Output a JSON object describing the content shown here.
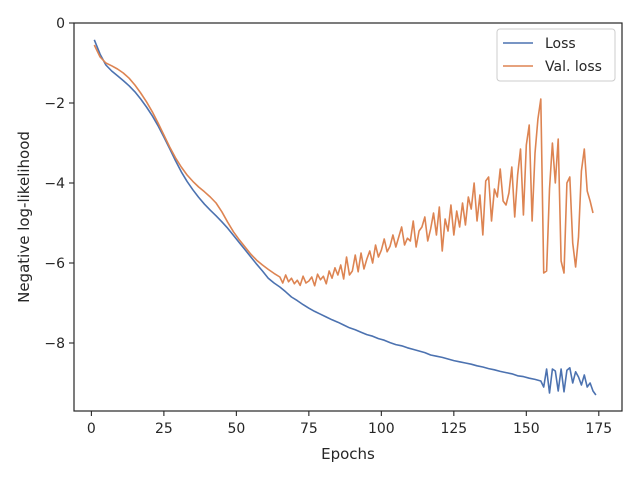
{
  "chart_data": {
    "type": "line",
    "title": "",
    "xlabel": "Epochs",
    "ylabel": "Negative log-likelihood",
    "xlim": [
      -6,
      183
    ],
    "ylim": [
      -9.7,
      0
    ],
    "xticks": [
      0,
      25,
      50,
      75,
      100,
      125,
      150,
      175
    ],
    "xtick_labels": [
      "0",
      "25",
      "50",
      "75",
      "100",
      "125",
      "150",
      "175"
    ],
    "yticks": [
      0,
      -2,
      -4,
      -6,
      -8
    ],
    "ytick_labels": [
      "0",
      "−2",
      "−4",
      "−6",
      "−8"
    ],
    "grid": false,
    "legend_position": "top-right",
    "series": [
      {
        "name": "Loss",
        "color": "#4c72b0",
        "points": [
          [
            1,
            -0.42
          ],
          [
            3,
            -0.78
          ],
          [
            5,
            -1.05
          ],
          [
            7,
            -1.2
          ],
          [
            9,
            -1.32
          ],
          [
            11,
            -1.44
          ],
          [
            13,
            -1.57
          ],
          [
            15,
            -1.72
          ],
          [
            17,
            -1.9
          ],
          [
            19,
            -2.1
          ],
          [
            21,
            -2.32
          ],
          [
            23,
            -2.57
          ],
          [
            25,
            -2.85
          ],
          [
            27,
            -3.14
          ],
          [
            29,
            -3.44
          ],
          [
            31,
            -3.72
          ],
          [
            33,
            -3.96
          ],
          [
            35,
            -4.17
          ],
          [
            37,
            -4.36
          ],
          [
            39,
            -4.53
          ],
          [
            41,
            -4.68
          ],
          [
            43,
            -4.82
          ],
          [
            45,
            -4.97
          ],
          [
            47,
            -5.13
          ],
          [
            49,
            -5.31
          ],
          [
            51,
            -5.49
          ],
          [
            53,
            -5.67
          ],
          [
            55,
            -5.85
          ],
          [
            57,
            -6.03
          ],
          [
            59,
            -6.2
          ],
          [
            61,
            -6.38
          ],
          [
            63,
            -6.5
          ],
          [
            65,
            -6.6
          ],
          [
            67,
            -6.72
          ],
          [
            69,
            -6.85
          ],
          [
            71,
            -6.94
          ],
          [
            73,
            -7.04
          ],
          [
            75,
            -7.13
          ],
          [
            77,
            -7.21
          ],
          [
            79,
            -7.28
          ],
          [
            81,
            -7.35
          ],
          [
            83,
            -7.42
          ],
          [
            85,
            -7.48
          ],
          [
            87,
            -7.55
          ],
          [
            89,
            -7.62
          ],
          [
            91,
            -7.67
          ],
          [
            93,
            -7.73
          ],
          [
            95,
            -7.79
          ],
          [
            97,
            -7.83
          ],
          [
            99,
            -7.89
          ],
          [
            101,
            -7.93
          ],
          [
            103,
            -7.99
          ],
          [
            105,
            -8.04
          ],
          [
            107,
            -8.07
          ],
          [
            109,
            -8.12
          ],
          [
            111,
            -8.16
          ],
          [
            113,
            -8.2
          ],
          [
            115,
            -8.24
          ],
          [
            117,
            -8.3
          ],
          [
            119,
            -8.33
          ],
          [
            121,
            -8.36
          ],
          [
            123,
            -8.4
          ],
          [
            125,
            -8.44
          ],
          [
            127,
            -8.47
          ],
          [
            129,
            -8.5
          ],
          [
            131,
            -8.53
          ],
          [
            133,
            -8.57
          ],
          [
            135,
            -8.6
          ],
          [
            137,
            -8.64
          ],
          [
            139,
            -8.67
          ],
          [
            141,
            -8.71
          ],
          [
            143,
            -8.74
          ],
          [
            145,
            -8.77
          ],
          [
            147,
            -8.82
          ],
          [
            149,
            -8.84
          ],
          [
            151,
            -8.88
          ],
          [
            153,
            -8.91
          ],
          [
            155,
            -8.95
          ],
          [
            156,
            -9.1
          ],
          [
            157,
            -8.65
          ],
          [
            158,
            -9.25
          ],
          [
            159,
            -8.65
          ],
          [
            160,
            -8.7
          ],
          [
            161,
            -9.2
          ],
          [
            162,
            -8.65
          ],
          [
            163,
            -9.22
          ],
          [
            164,
            -8.68
          ],
          [
            165,
            -8.62
          ],
          [
            166,
            -9.0
          ],
          [
            167,
            -8.72
          ],
          [
            168,
            -8.85
          ],
          [
            169,
            -9.05
          ],
          [
            170,
            -8.8
          ],
          [
            171,
            -9.1
          ],
          [
            172,
            -9.0
          ],
          [
            173,
            -9.2
          ],
          [
            174,
            -9.3
          ]
        ]
      },
      {
        "name": "Val. loss",
        "color": "#dd8452",
        "points": [
          [
            1,
            -0.55
          ],
          [
            3,
            -0.85
          ],
          [
            5,
            -1.0
          ],
          [
            7,
            -1.07
          ],
          [
            9,
            -1.15
          ],
          [
            11,
            -1.25
          ],
          [
            13,
            -1.38
          ],
          [
            15,
            -1.55
          ],
          [
            17,
            -1.75
          ],
          [
            19,
            -1.97
          ],
          [
            21,
            -2.22
          ],
          [
            23,
            -2.5
          ],
          [
            25,
            -2.8
          ],
          [
            27,
            -3.1
          ],
          [
            29,
            -3.37
          ],
          [
            31,
            -3.6
          ],
          [
            33,
            -3.8
          ],
          [
            35,
            -3.96
          ],
          [
            37,
            -4.1
          ],
          [
            39,
            -4.22
          ],
          [
            41,
            -4.35
          ],
          [
            43,
            -4.5
          ],
          [
            45,
            -4.72
          ],
          [
            47,
            -4.98
          ],
          [
            49,
            -5.22
          ],
          [
            51,
            -5.42
          ],
          [
            53,
            -5.6
          ],
          [
            55,
            -5.78
          ],
          [
            57,
            -5.93
          ],
          [
            59,
            -6.05
          ],
          [
            61,
            -6.16
          ],
          [
            63,
            -6.26
          ],
          [
            65,
            -6.35
          ],
          [
            66,
            -6.5
          ],
          [
            67,
            -6.3
          ],
          [
            68,
            -6.47
          ],
          [
            69,
            -6.38
          ],
          [
            70,
            -6.52
          ],
          [
            71,
            -6.43
          ],
          [
            72,
            -6.56
          ],
          [
            73,
            -6.33
          ],
          [
            74,
            -6.5
          ],
          [
            75,
            -6.45
          ],
          [
            76,
            -6.35
          ],
          [
            77,
            -6.57
          ],
          [
            78,
            -6.28
          ],
          [
            79,
            -6.42
          ],
          [
            80,
            -6.33
          ],
          [
            81,
            -6.52
          ],
          [
            82,
            -6.2
          ],
          [
            83,
            -6.38
          ],
          [
            84,
            -6.12
          ],
          [
            85,
            -6.3
          ],
          [
            86,
            -6.05
          ],
          [
            87,
            -6.4
          ],
          [
            88,
            -5.85
          ],
          [
            89,
            -6.3
          ],
          [
            90,
            -6.2
          ],
          [
            91,
            -5.8
          ],
          [
            92,
            -6.22
          ],
          [
            93,
            -5.75
          ],
          [
            94,
            -6.15
          ],
          [
            95,
            -5.9
          ],
          [
            96,
            -5.7
          ],
          [
            97,
            -6.0
          ],
          [
            98,
            -5.55
          ],
          [
            99,
            -5.85
          ],
          [
            100,
            -5.68
          ],
          [
            101,
            -5.4
          ],
          [
            102,
            -5.72
          ],
          [
            103,
            -5.58
          ],
          [
            104,
            -5.3
          ],
          [
            105,
            -5.6
          ],
          [
            106,
            -5.35
          ],
          [
            107,
            -5.1
          ],
          [
            108,
            -5.55
          ],
          [
            109,
            -5.38
          ],
          [
            110,
            -5.45
          ],
          [
            111,
            -4.95
          ],
          [
            112,
            -5.6
          ],
          [
            113,
            -5.2
          ],
          [
            114,
            -5.1
          ],
          [
            115,
            -4.85
          ],
          [
            116,
            -5.45
          ],
          [
            117,
            -5.15
          ],
          [
            118,
            -4.75
          ],
          [
            119,
            -5.3
          ],
          [
            120,
            -4.6
          ],
          [
            121,
            -5.7
          ],
          [
            122,
            -4.9
          ],
          [
            123,
            -5.2
          ],
          [
            124,
            -4.55
          ],
          [
            125,
            -5.3
          ],
          [
            126,
            -4.7
          ],
          [
            127,
            -5.1
          ],
          [
            128,
            -4.5
          ],
          [
            129,
            -5.05
          ],
          [
            130,
            -4.35
          ],
          [
            131,
            -4.65
          ],
          [
            132,
            -4.0
          ],
          [
            133,
            -4.95
          ],
          [
            134,
            -4.3
          ],
          [
            135,
            -5.3
          ],
          [
            136,
            -3.95
          ],
          [
            137,
            -3.85
          ],
          [
            138,
            -4.95
          ],
          [
            139,
            -4.15
          ],
          [
            140,
            -4.35
          ],
          [
            141,
            -3.65
          ],
          [
            142,
            -4.45
          ],
          [
            143,
            -4.55
          ],
          [
            144,
            -4.25
          ],
          [
            145,
            -3.6
          ],
          [
            146,
            -4.85
          ],
          [
            147,
            -3.8
          ],
          [
            148,
            -3.15
          ],
          [
            149,
            -4.8
          ],
          [
            150,
            -3.05
          ],
          [
            151,
            -2.55
          ],
          [
            152,
            -4.95
          ],
          [
            153,
            -3.25
          ],
          [
            154,
            -2.4
          ],
          [
            155,
            -1.9
          ],
          [
            156,
            -6.25
          ],
          [
            157,
            -6.2
          ],
          [
            158,
            -4.15
          ],
          [
            159,
            -3.0
          ],
          [
            160,
            -4.0
          ],
          [
            161,
            -2.9
          ],
          [
            162,
            -5.95
          ],
          [
            163,
            -6.25
          ],
          [
            164,
            -4.0
          ],
          [
            165,
            -3.85
          ],
          [
            166,
            -5.5
          ],
          [
            167,
            -6.1
          ],
          [
            168,
            -5.35
          ],
          [
            169,
            -3.7
          ],
          [
            170,
            -3.15
          ],
          [
            171,
            -4.2
          ],
          [
            172,
            -4.45
          ],
          [
            173,
            -4.75
          ]
        ]
      }
    ]
  }
}
